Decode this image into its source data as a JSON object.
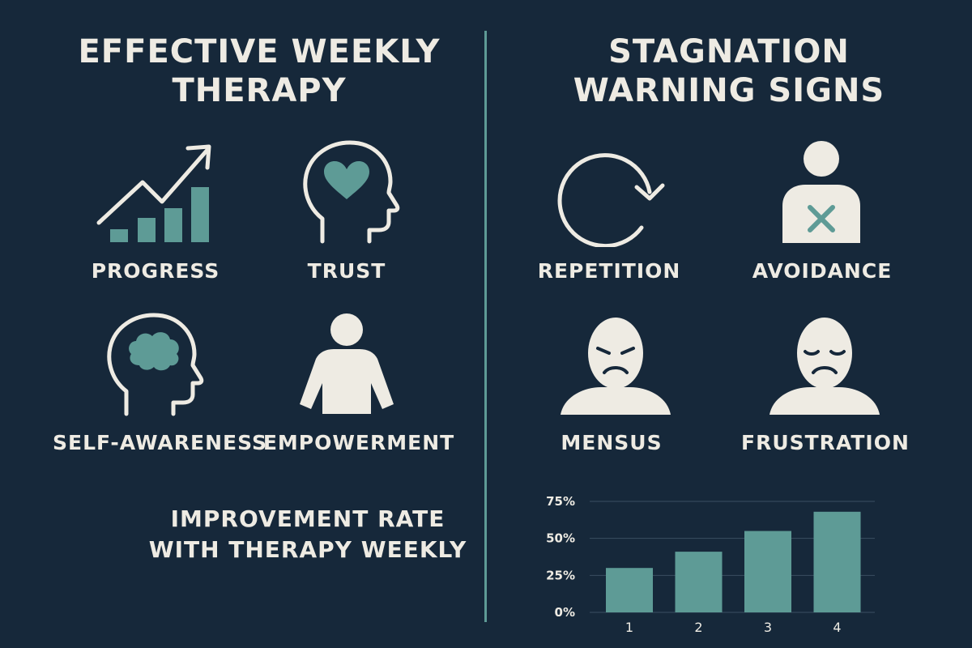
{
  "colors": {
    "background": "#16283a",
    "accent": "#5e9b96",
    "icon_fill": "#eeebe3",
    "text": "#eeebe3"
  },
  "left_panel": {
    "title_lines": [
      "EFFECTIVE WEEKLY",
      "THERAPY"
    ],
    "items": [
      {
        "label": "PROGRESS",
        "icon": "growth-chart-icon"
      },
      {
        "label": "TRUST",
        "icon": "head-heart-icon"
      },
      {
        "label": "SELF-AWARENESS",
        "icon": "head-brain-icon"
      },
      {
        "label": "EMPOWERMENT",
        "icon": "person-icon"
      }
    ],
    "caption_lines": [
      "IMPROVEMENT RATE",
      "WITH THERAPY WEEKLY"
    ]
  },
  "right_panel": {
    "title_lines": [
      "STAGNATION",
      "WARNING SIGNS"
    ],
    "items": [
      {
        "label": "REPETITION",
        "icon": "circular-arrow-icon"
      },
      {
        "label": "AVOIDANCE",
        "icon": "person-x-icon"
      },
      {
        "label": "MENSUS",
        "icon": "angry-face-icon"
      },
      {
        "label": "FRUSTRATION",
        "icon": "sad-face-icon"
      }
    ]
  },
  "chart_data": {
    "type": "bar",
    "categories": [
      "1",
      "2",
      "3",
      "4"
    ],
    "values": [
      30,
      41,
      55,
      68
    ],
    "y_ticks": [
      "0%",
      "25%",
      "50%",
      "75%"
    ],
    "ylim": [
      0,
      75
    ],
    "grid": true,
    "title": "",
    "xlabel": "",
    "ylabel": ""
  }
}
